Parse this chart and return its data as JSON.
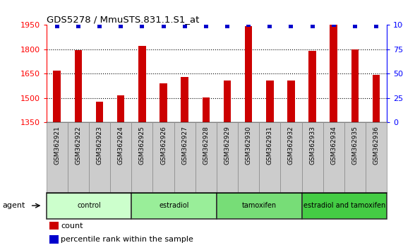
{
  "title": "GDS5278 / MmuSTS.831.1.S1_at",
  "samples": [
    "GSM362921",
    "GSM362922",
    "GSM362923",
    "GSM362924",
    "GSM362925",
    "GSM362926",
    "GSM362927",
    "GSM362928",
    "GSM362929",
    "GSM362930",
    "GSM362931",
    "GSM362932",
    "GSM362933",
    "GSM362934",
    "GSM362935",
    "GSM362936"
  ],
  "counts": [
    1670,
    1795,
    1478,
    1515,
    1820,
    1590,
    1630,
    1505,
    1608,
    1945,
    1608,
    1610,
    1790,
    1950,
    1800,
    1642
  ],
  "percentile": [
    99,
    99,
    99,
    99,
    99,
    99,
    99,
    99,
    99,
    100,
    99,
    99,
    99,
    100,
    99,
    99
  ],
  "ylim_left": [
    1350,
    1950
  ],
  "ylim_right": [
    0,
    100
  ],
  "yticks_left": [
    1350,
    1500,
    1650,
    1800,
    1950
  ],
  "yticks_right": [
    0,
    25,
    50,
    75,
    100
  ],
  "bar_color": "#cc0000",
  "dot_color": "#0000cc",
  "groups": [
    {
      "label": "control",
      "start": 0,
      "end": 4,
      "color": "#ccffcc"
    },
    {
      "label": "estradiol",
      "start": 4,
      "end": 8,
      "color": "#99ee99"
    },
    {
      "label": "tamoxifen",
      "start": 8,
      "end": 12,
      "color": "#77dd77"
    },
    {
      "label": "estradiol and tamoxifen",
      "start": 12,
      "end": 16,
      "color": "#44cc44"
    }
  ],
  "agent_label": "agent",
  "legend_count_label": "count",
  "legend_pct_label": "percentile rank within the sample",
  "tick_bg_color": "#cccccc",
  "n_samples": 16
}
